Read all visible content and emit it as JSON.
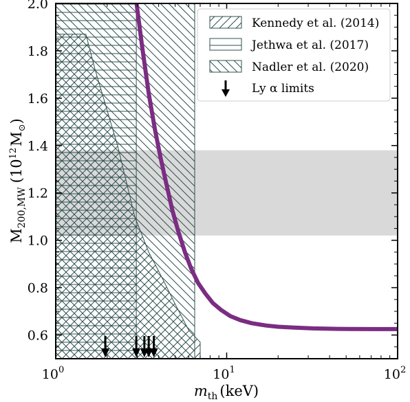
{
  "chart_data": {
    "type": "line",
    "xscale": "log",
    "xlim": [
      1,
      100
    ],
    "ylim": [
      0.5,
      2.0
    ],
    "x_ticks": [
      {
        "value": 1,
        "base": "10",
        "exp": "0"
      },
      {
        "value": 10,
        "base": "10",
        "exp": "1"
      },
      {
        "value": 100,
        "base": "10",
        "exp": "2"
      }
    ],
    "y_ticks": [
      "0.6",
      "0.8",
      "1.0",
      "1.2",
      "1.4",
      "1.6",
      "1.8",
      "2.0"
    ],
    "xlabel": {
      "main": "m",
      "sub": "th",
      "unit": "(keV)"
    },
    "ylabel": {
      "main": "M",
      "sub": "200,MW",
      "unit_open": "(10",
      "unit_exp": "12",
      "unit_m": "M",
      "unit_sub": "⊙",
      "unit_close": ")"
    },
    "series": [
      {
        "color": "#7b2d82",
        "points": [
          [
            2.97,
            2.0
          ],
          [
            3.2,
            1.82
          ],
          [
            3.5,
            1.62
          ],
          [
            3.8,
            1.47
          ],
          [
            4.1,
            1.35
          ],
          [
            4.4,
            1.25
          ],
          [
            4.8,
            1.13
          ],
          [
            5.2,
            1.04
          ],
          [
            5.7,
            0.95
          ],
          [
            6.2,
            0.88
          ],
          [
            6.8,
            0.82
          ],
          [
            7.5,
            0.775
          ],
          [
            8.3,
            0.735
          ],
          [
            9.3,
            0.705
          ],
          [
            10.5,
            0.68
          ],
          [
            12,
            0.663
          ],
          [
            14,
            0.65
          ],
          [
            17,
            0.64
          ],
          [
            20,
            0.635
          ],
          [
            25,
            0.631
          ],
          [
            32,
            0.628
          ],
          [
            45,
            0.626
          ],
          [
            70,
            0.625
          ],
          [
            100,
            0.625
          ]
        ]
      }
    ],
    "shaded_band": {
      "y_range": [
        1.02,
        1.38
      ],
      "color": "#d9d9d9"
    },
    "exclusion_regions": [
      {
        "name": "Kennedy et al. (2014)",
        "hatch": "forward-diagonal",
        "polygon": [
          [
            1,
            1.87
          ],
          [
            1.5,
            1.87
          ],
          [
            1.7,
            1.72
          ],
          [
            2.3,
            1.4
          ],
          [
            2.9,
            1.1
          ],
          [
            3.5,
            0.95
          ],
          [
            4.2,
            0.84
          ],
          [
            5.0,
            0.73
          ],
          [
            6.0,
            0.62
          ],
          [
            7.0,
            0.57
          ],
          [
            7.0,
            0.5
          ],
          [
            1,
            0.5
          ]
        ]
      },
      {
        "name": "Jethwa et al. (2017)",
        "hatch": "horizontal",
        "x_range": [
          1,
          2.96
        ],
        "y_range": [
          0.5,
          2.0
        ]
      },
      {
        "name": "Nadler et al. (2020)",
        "hatch": "back-diagonal",
        "x_range": [
          1,
          6.5
        ],
        "y_range": [
          0.5,
          2.0
        ]
      }
    ],
    "lya_limits": {
      "name": "Ly α limits",
      "x": [
        1.95,
        2.96,
        3.3,
        3.5,
        3.75
      ]
    },
    "legend": {
      "placement": "top-right",
      "entries": [
        {
          "label": "Kennedy et al. (2014)",
          "marker": "hatch-forward"
        },
        {
          "label": "Jethwa et al. (2017)",
          "marker": "hatch-horizontal"
        },
        {
          "label": "Nadler et al. (2020)",
          "marker": "hatch-back"
        },
        {
          "label": "Ly α limits",
          "marker": "down-arrow"
        }
      ]
    },
    "colors": {
      "hatch": "#2f4f4f",
      "curve": "#7b2d82",
      "band": "#d9d9d9",
      "arrow": "#000000"
    }
  }
}
